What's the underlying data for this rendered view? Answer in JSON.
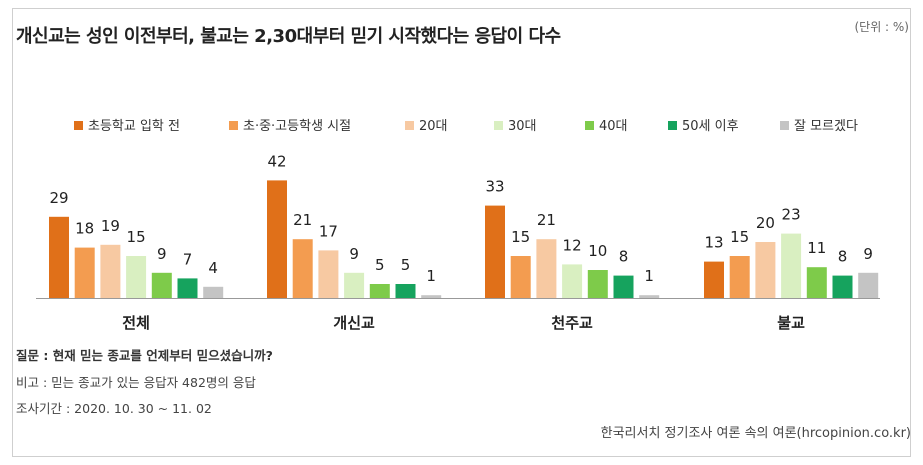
{
  "unit_label": "(단위 : %)",
  "notes": {
    "question": "질문 : 현재 믿는 종교를 언제부터 믿으셨습니까?",
    "base": "비고 : 믿는 종교가 있는 응답자 482명의 응답",
    "period": "조사기간 : 2020. 10. 30 ~ 11. 02"
  },
  "source": "한국리서치 정기조사 여론 속의 여론(hrcopinion.co.kr)",
  "chart_data": {
    "type": "bar",
    "title": "개신교는 성인 이전부터, 불교는 2,30대부터 믿기 시작했다는 응답이 다수",
    "xlabel": "",
    "ylabel": "",
    "ylim": [
      0,
      45
    ],
    "legend_position": "top",
    "categories": [
      "전체",
      "개신교",
      "천주교",
      "불교"
    ],
    "series": [
      {
        "name": "초등학교 입학 전",
        "color": "#e07019",
        "values": [
          29,
          42,
          33,
          13
        ]
      },
      {
        "name": "초·중·고등학생 시절",
        "color": "#f39c50",
        "values": [
          18,
          21,
          15,
          15
        ]
      },
      {
        "name": "20대",
        "color": "#f7c9a2",
        "values": [
          19,
          17,
          21,
          20
        ]
      },
      {
        "name": "30대",
        "color": "#d9efc1",
        "values": [
          15,
          9,
          12,
          23
        ]
      },
      {
        "name": "40대",
        "color": "#7ecb4a",
        "values": [
          9,
          5,
          10,
          11
        ]
      },
      {
        "name": "50세 이후",
        "color": "#16a35e",
        "values": [
          7,
          5,
          8,
          8
        ]
      },
      {
        "name": "잘 모르겠다",
        "color": "#c4c4c4",
        "values": [
          4,
          1,
          1,
          9
        ]
      }
    ]
  }
}
